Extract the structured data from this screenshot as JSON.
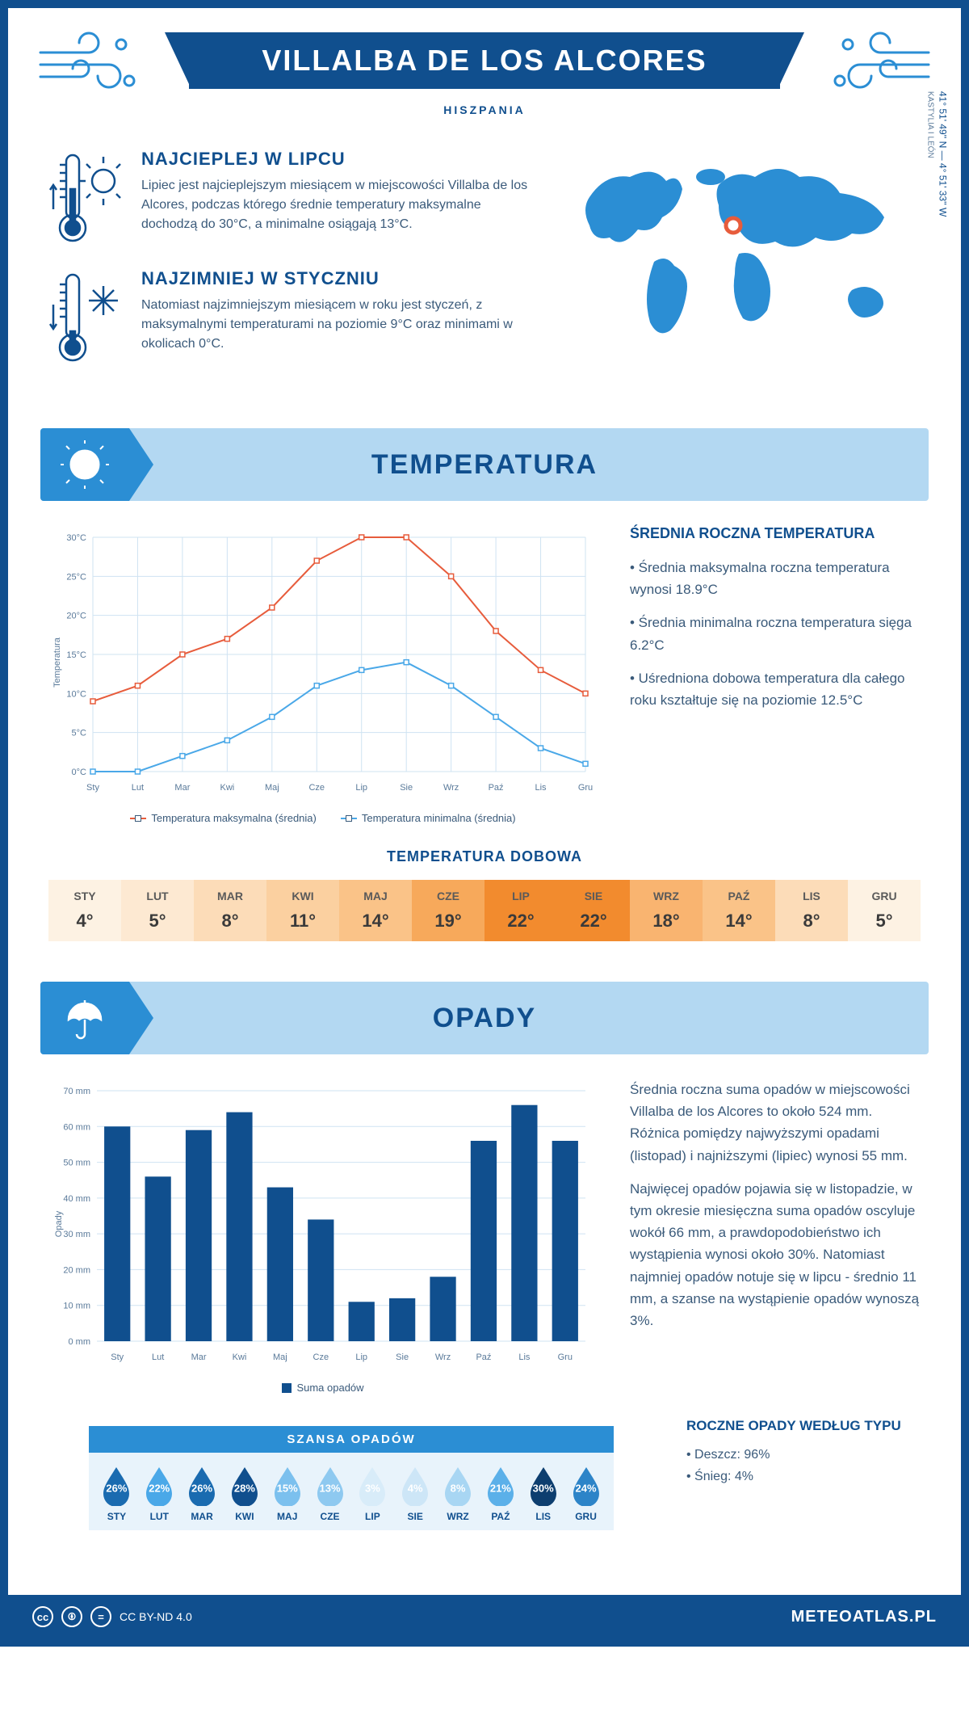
{
  "header": {
    "title": "VILLALBA DE LOS ALCORES",
    "country": "HISZPANIA",
    "coords": "41° 51' 49'' N — 4° 51' 33'' W",
    "region": "KASTYLIA I LEÓN"
  },
  "intro": {
    "hot": {
      "title": "NAJCIEPLEJ W LIPCU",
      "text": "Lipiec jest najcieplejszym miesiącem w miejscowości Villalba de los Alcores, podczas którego średnie temperatury maksymalne dochodzą do 30°C, a minimalne osiągają 13°C."
    },
    "cold": {
      "title": "NAJZIMNIEJ W STYCZNIU",
      "text": "Natomiast najzimniejszym miesiącem w roku jest styczeń, z maksymalnymi temperaturami na poziomie 9°C oraz minimami w okolicach 0°C."
    }
  },
  "sections": {
    "temp": "TEMPERATURA",
    "precip": "OPADY"
  },
  "tempChart": {
    "type": "line",
    "ylabel": "Temperatura",
    "ylim": [
      0,
      30
    ],
    "ytick_step": 5,
    "months": [
      "Sty",
      "Lut",
      "Mar",
      "Kwi",
      "Maj",
      "Cze",
      "Lip",
      "Sie",
      "Wrz",
      "Paź",
      "Lis",
      "Gru"
    ],
    "series": {
      "max": {
        "label": "Temperatura maksymalna (średnia)",
        "color": "#e75c3c",
        "values": [
          9,
          11,
          15,
          17,
          21,
          27,
          30,
          30,
          25,
          18,
          13,
          10
        ]
      },
      "min": {
        "label": "Temperatura minimalna (średnia)",
        "color": "#4aa8e8",
        "values": [
          0,
          0,
          2,
          4,
          7,
          11,
          13,
          14,
          11,
          7,
          3,
          1
        ]
      }
    },
    "grid_color": "#cfe3f2",
    "background": "#ffffff",
    "axis_fontsize": 11
  },
  "tempSide": {
    "title": "ŚREDNIA ROCZNA TEMPERATURA",
    "bullets": [
      "Średnia maksymalna roczna temperatura wynosi 18.9°C",
      "Średnia minimalna roczna temperatura sięga 6.2°C",
      "Uśredniona dobowa temperatura dla całego roku kształtuje się na poziomie 12.5°C"
    ]
  },
  "dailyTemp": {
    "title": "TEMPERATURA DOBOWA",
    "months": [
      "STY",
      "LUT",
      "MAR",
      "KWI",
      "MAJ",
      "CZE",
      "LIP",
      "SIE",
      "WRZ",
      "PAŹ",
      "LIS",
      "GRU"
    ],
    "values": [
      "4°",
      "5°",
      "8°",
      "11°",
      "14°",
      "19°",
      "22°",
      "22°",
      "18°",
      "14°",
      "8°",
      "5°"
    ],
    "colors": [
      "#fdf2e3",
      "#fde9d2",
      "#fcdcb8",
      "#fbd0a0",
      "#fac388",
      "#f7a95b",
      "#f28b2e",
      "#f28b2e",
      "#f9b470",
      "#fac388",
      "#fcdcb8",
      "#fdf2e3"
    ]
  },
  "precipChart": {
    "type": "bar",
    "ylabel": "Opady",
    "ylim": [
      0,
      70
    ],
    "ytick_step": 10,
    "months": [
      "Sty",
      "Lut",
      "Mar",
      "Kwi",
      "Maj",
      "Cze",
      "Lip",
      "Sie",
      "Wrz",
      "Paź",
      "Lis",
      "Gru"
    ],
    "values": [
      60,
      46,
      59,
      64,
      43,
      34,
      11,
      12,
      18,
      56,
      66,
      56
    ],
    "bar_color": "#104f8e",
    "grid_color": "#cfe3f2",
    "legend": "Suma opadów"
  },
  "precipSide": {
    "p1": "Średnia roczna suma opadów w miejscowości Villalba de los Alcores to około 524 mm. Różnica pomiędzy najwyższymi opadami (listopad) i najniższymi (lipiec) wynosi 55 mm.",
    "p2": "Najwięcej opadów pojawia się w listopadzie, w tym okresie miesięczna suma opadów oscyluje wokół 66 mm, a prawdopodobieństwo ich wystąpienia wynosi około 30%. Natomiast najmniej opadów notuje się w lipcu - średnio 11 mm, a szanse na wystąpienie opadów wynoszą 3%."
  },
  "chance": {
    "title": "SZANSA OPADÓW",
    "months": [
      "STY",
      "LUT",
      "MAR",
      "KWI",
      "MAJ",
      "CZE",
      "LIP",
      "SIE",
      "WRZ",
      "PAŹ",
      "LIS",
      "GRU"
    ],
    "values": [
      "26%",
      "22%",
      "26%",
      "28%",
      "15%",
      "13%",
      "3%",
      "4%",
      "8%",
      "21%",
      "30%",
      "24%"
    ],
    "colors": [
      "#1a6bb0",
      "#4aa8e8",
      "#1a6bb0",
      "#104f8e",
      "#7bc0ee",
      "#8ec9f0",
      "#d8ecf9",
      "#cde6f7",
      "#a8d6f3",
      "#5bb0e9",
      "#0d3e6f",
      "#2d84c8"
    ]
  },
  "precipType": {
    "title": "ROCZNE OPADY WEDŁUG TYPU",
    "items": [
      "Deszcz: 96%",
      "Śnieg: 4%"
    ]
  },
  "footer": {
    "license": "CC BY-ND 4.0",
    "site": "METEOATLAS.PL"
  }
}
